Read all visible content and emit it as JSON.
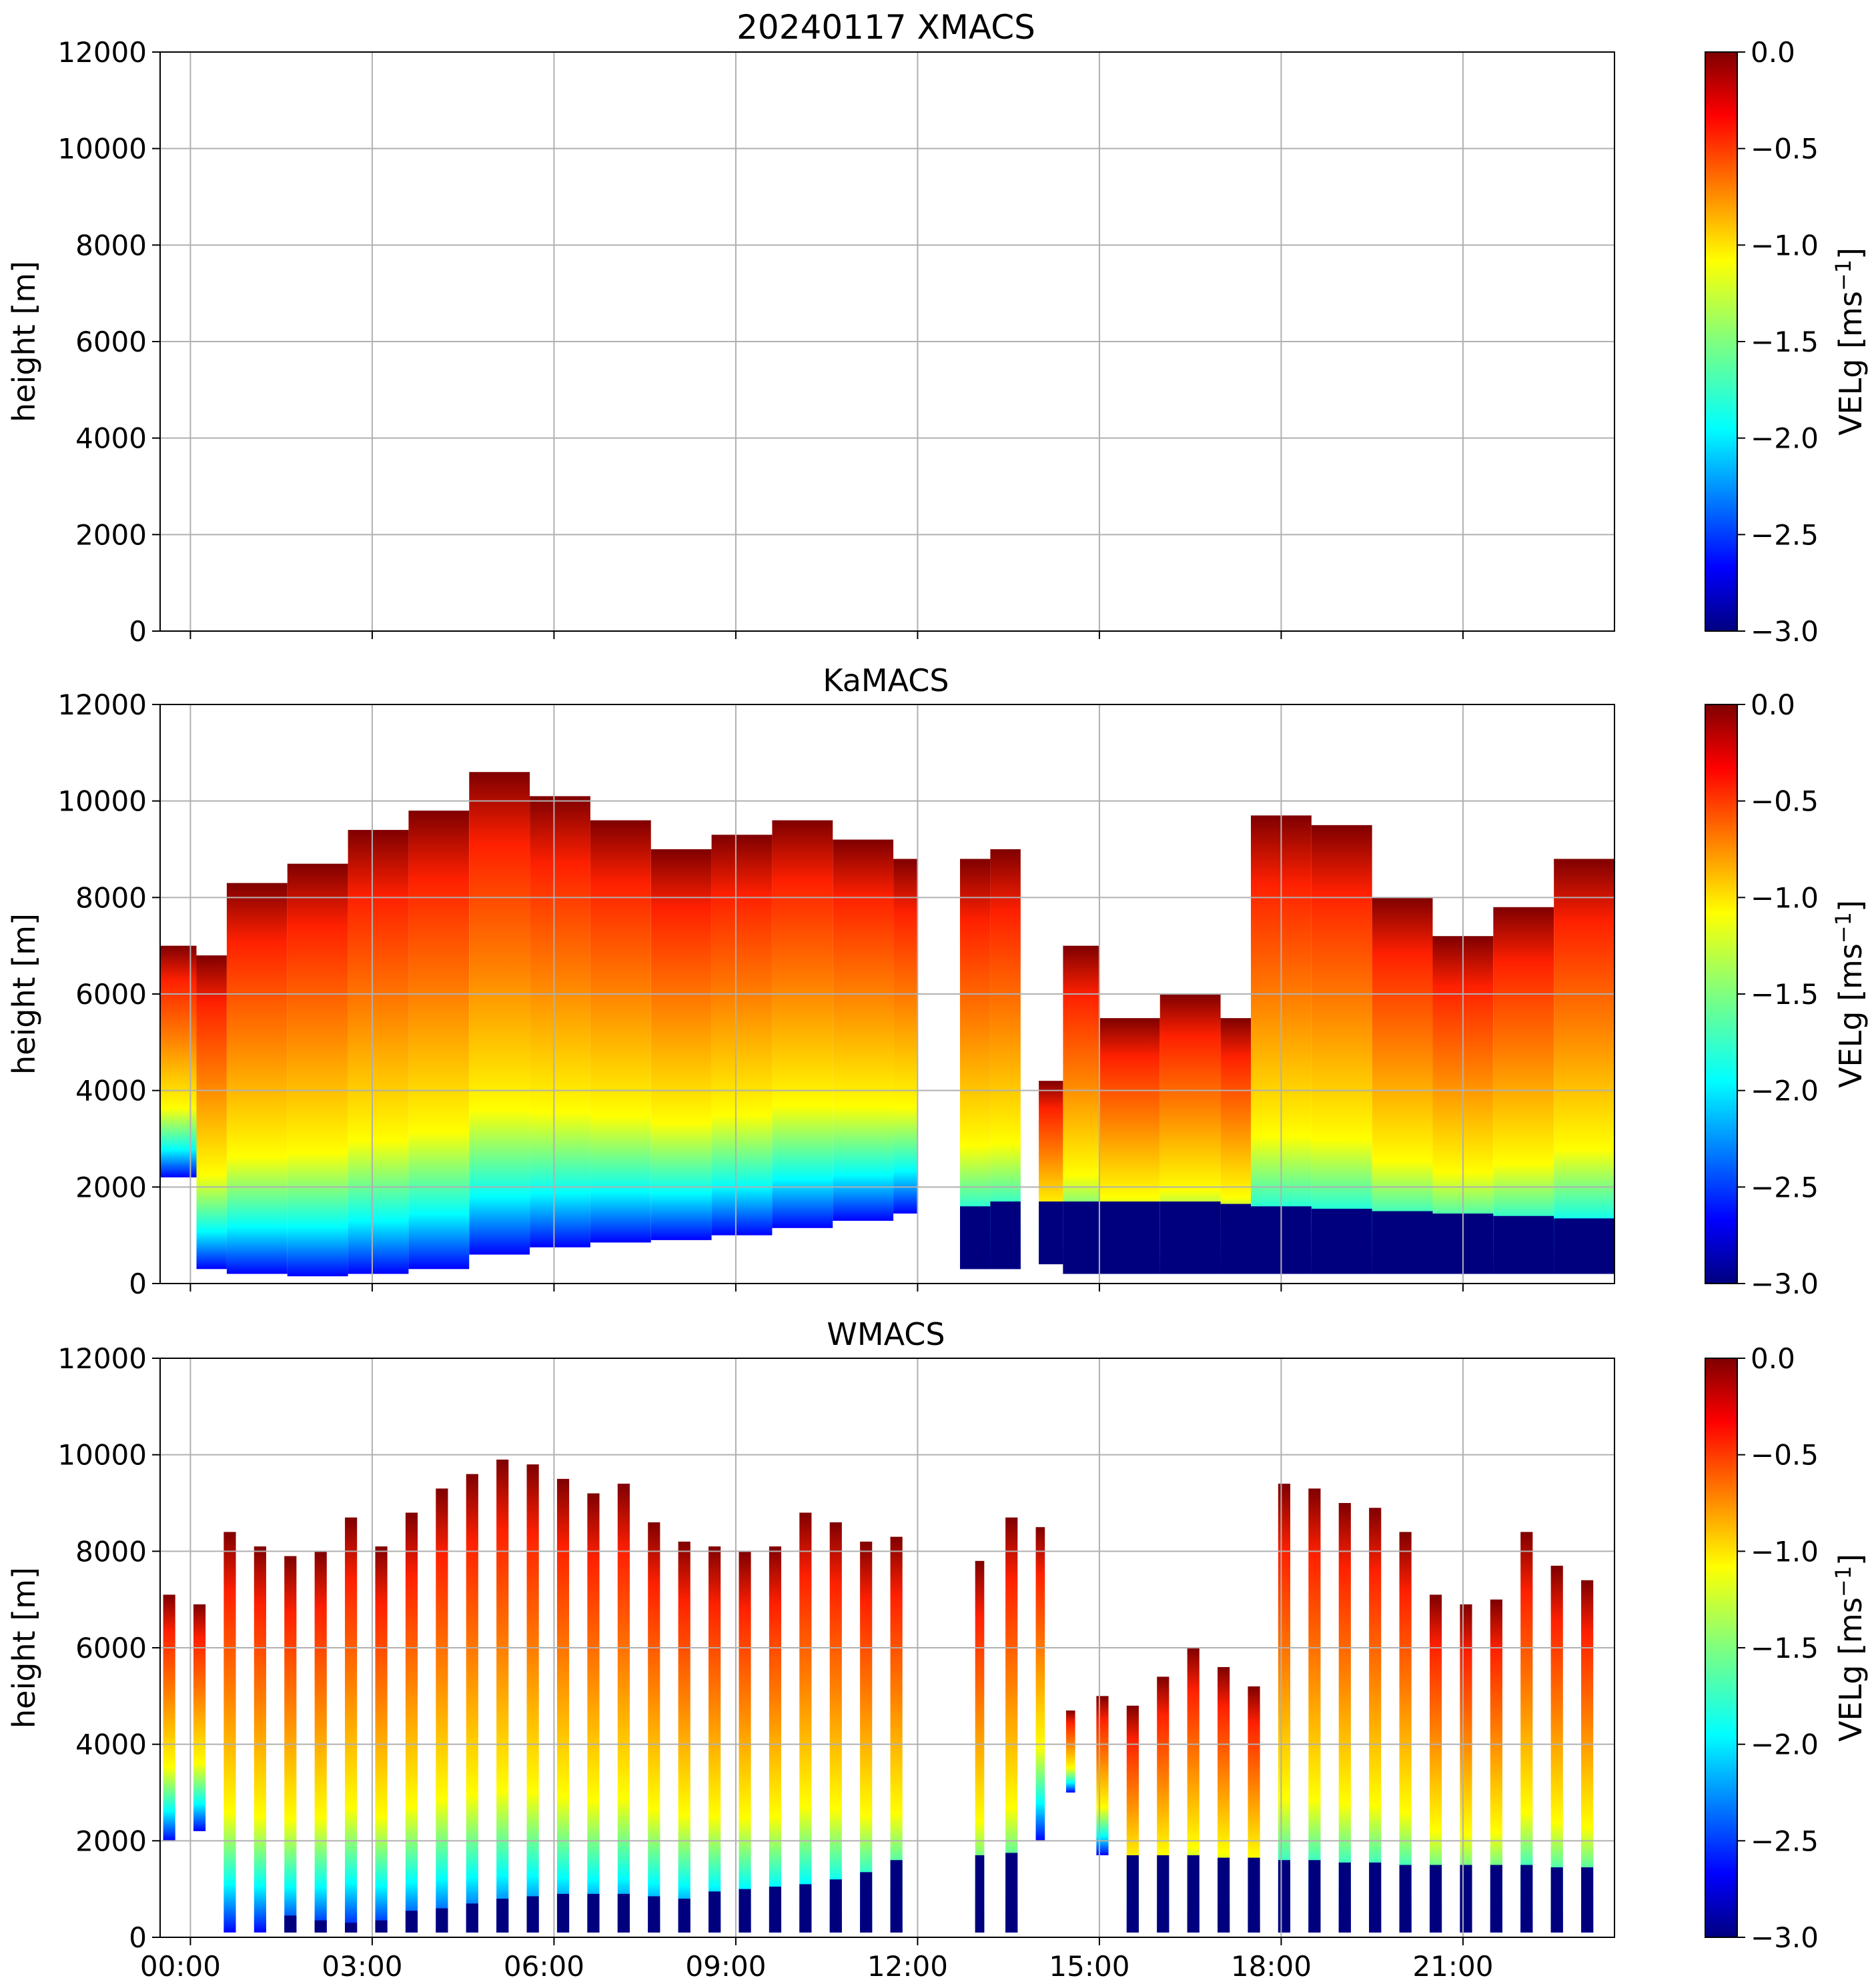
{
  "figure": {
    "colormap": [
      "#00007f",
      "#0000ff",
      "#007fff",
      "#00ffff",
      "#7fff7f",
      "#ffff00",
      "#ff7f00",
      "#ff0000",
      "#7f0000"
    ],
    "x_ticks": [
      "00:00",
      "03:00",
      "06:00",
      "09:00",
      "12:00",
      "15:00",
      "18:00",
      "21:00"
    ],
    "x_tick_hours": [
      0,
      3,
      6,
      9,
      12,
      15,
      18,
      21
    ]
  },
  "chart_data": [
    {
      "type": "heatmap",
      "title": "20240117 XMACS",
      "xlabel": "",
      "ylabel": "height [m]",
      "xlim_hours": [
        -0.5,
        23.5
      ],
      "ylim": [
        0,
        12000
      ],
      "y_ticks": [
        "0",
        "2000",
        "4000",
        "6000",
        "8000",
        "10000",
        "12000"
      ],
      "y_tick_values": [
        0,
        2000,
        4000,
        6000,
        8000,
        10000,
        12000
      ],
      "colorbar": {
        "label": "VELg [ms",
        "label_sup": "−1",
        "label_end": "]",
        "range": [
          -3.0,
          0.0
        ],
        "ticks": [
          "0.0",
          "−0.5",
          "−1.0",
          "−1.5",
          "−2.0",
          "−2.5",
          "−3.0"
        ],
        "tick_values": [
          0.0,
          -0.5,
          -1.0,
          -1.5,
          -2.0,
          -2.5,
          -3.0
        ]
      },
      "has_data": false,
      "columns": []
    },
    {
      "type": "heatmap",
      "title": "KaMACS",
      "xlabel": "",
      "ylabel": "height [m]",
      "xlim_hours": [
        -0.5,
        23.5
      ],
      "ylim": [
        0,
        12000
      ],
      "y_ticks": [
        "0",
        "2000",
        "4000",
        "6000",
        "8000",
        "10000",
        "12000"
      ],
      "y_tick_values": [
        0,
        2000,
        4000,
        6000,
        8000,
        10000,
        12000
      ],
      "colorbar": {
        "label": "VELg [ms",
        "label_sup": "−1",
        "label_end": "]",
        "range": [
          -3.0,
          0.0
        ],
        "ticks": [
          "0.0",
          "−0.5",
          "−1.0",
          "−1.5",
          "−2.0",
          "−2.5",
          "−3.0"
        ],
        "tick_values": [
          0.0,
          -0.5,
          -1.0,
          -1.5,
          -2.0,
          -2.5,
          -3.0
        ]
      },
      "has_data": true,
      "columns": [
        {
          "t0": -0.5,
          "t1": 0.1,
          "top": 7000,
          "base": 0,
          "fill_base": 2200
        },
        {
          "t0": 0.1,
          "t1": 0.6,
          "top": 6800,
          "base": 200,
          "fill_base": 300
        },
        {
          "t0": 0.6,
          "t1": 1.6,
          "top": 8300,
          "base": 100,
          "fill_base": 200
        },
        {
          "t0": 1.6,
          "t1": 2.6,
          "top": 8700,
          "base": 150,
          "fill_base": 150
        },
        {
          "t0": 2.6,
          "t1": 3.6,
          "top": 9400,
          "base": 150,
          "fill_base": 200
        },
        {
          "t0": 3.6,
          "t1": 4.6,
          "top": 9800,
          "base": 300,
          "fill_base": 300
        },
        {
          "t0": 4.6,
          "t1": 5.6,
          "top": 10600,
          "base": 600,
          "fill_base": 600
        },
        {
          "t0": 5.6,
          "t1": 6.6,
          "top": 10100,
          "base": 750,
          "fill_base": 750
        },
        {
          "t0": 6.6,
          "t1": 7.6,
          "top": 9600,
          "base": 850,
          "fill_base": 850
        },
        {
          "t0": 7.6,
          "t1": 8.6,
          "top": 9000,
          "base": 900,
          "fill_base": 900
        },
        {
          "t0": 8.6,
          "t1": 9.6,
          "top": 9300,
          "base": 1000,
          "fill_base": 1000
        },
        {
          "t0": 9.6,
          "t1": 10.6,
          "top": 9600,
          "base": 1150,
          "fill_base": 1150
        },
        {
          "t0": 10.6,
          "t1": 11.6,
          "top": 9200,
          "base": 1300,
          "fill_base": 1300
        },
        {
          "t0": 11.6,
          "t1": 12.0,
          "top": 8800,
          "base": 1450,
          "fill_base": 1450
        },
        {
          "t0": 12.7,
          "t1": 13.2,
          "top": 8800,
          "base": 1600,
          "fill_base": 300
        },
        {
          "t0": 13.2,
          "t1": 13.7,
          "top": 9000,
          "base": 1700,
          "fill_base": 300
        },
        {
          "t0": 14.0,
          "t1": 14.4,
          "top": 4200,
          "base": 1700,
          "fill_base": 400
        },
        {
          "t0": 14.4,
          "t1": 15.0,
          "top": 7000,
          "base": 1700,
          "fill_base": 200
        },
        {
          "t0": 15.0,
          "t1": 16.0,
          "top": 5500,
          "base": 1700,
          "fill_base": 200
        },
        {
          "t0": 16.0,
          "t1": 17.0,
          "top": 6000,
          "base": 1700,
          "fill_base": 200
        },
        {
          "t0": 17.0,
          "t1": 17.5,
          "top": 5500,
          "base": 1650,
          "fill_base": 200
        },
        {
          "t0": 17.5,
          "t1": 18.5,
          "top": 9700,
          "base": 1600,
          "fill_base": 200
        },
        {
          "t0": 18.5,
          "t1": 19.5,
          "top": 9500,
          "base": 1550,
          "fill_base": 200
        },
        {
          "t0": 19.5,
          "t1": 20.5,
          "top": 8000,
          "base": 1500,
          "fill_base": 200
        },
        {
          "t0": 20.5,
          "t1": 21.5,
          "top": 7200,
          "base": 1450,
          "fill_base": 200
        },
        {
          "t0": 21.5,
          "t1": 22.5,
          "top": 7800,
          "base": 1400,
          "fill_base": 200
        },
        {
          "t0": 22.5,
          "t1": 23.5,
          "top": 8800,
          "base": 1350,
          "fill_base": 200
        }
      ]
    },
    {
      "type": "heatmap",
      "title": "WMACS",
      "xlabel": "",
      "ylabel": "height [m]",
      "xlim_hours": [
        -0.5,
        23.5
      ],
      "ylim": [
        0,
        12000
      ],
      "y_ticks": [
        "0",
        "2000",
        "4000",
        "6000",
        "8000",
        "10000",
        "12000"
      ],
      "y_tick_values": [
        0,
        2000,
        4000,
        6000,
        8000,
        10000,
        12000
      ],
      "colorbar": {
        "label": "VELg [ms",
        "label_sup": "−1",
        "label_end": "]",
        "range": [
          -3.0,
          0.0
        ],
        "ticks": [
          "0.0",
          "−0.5",
          "−1.0",
          "−1.5",
          "−2.0",
          "−2.5",
          "−3.0"
        ],
        "tick_values": [
          0.0,
          -0.5,
          -1.0,
          -1.5,
          -2.0,
          -2.5,
          -3.0
        ]
      },
      "has_data": true,
      "columns": [
        {
          "t0": -0.45,
          "t1": -0.25,
          "top": 7100,
          "base": 0,
          "fill_base": 2000
        },
        {
          "t0": 0.05,
          "t1": 0.25,
          "top": 6900,
          "base": 0,
          "fill_base": 2200
        },
        {
          "t0": 0.55,
          "t1": 0.75,
          "top": 8400,
          "base": 0,
          "fill_base": 100
        },
        {
          "t0": 1.05,
          "t1": 1.25,
          "top": 8100,
          "base": 0,
          "fill_base": 100
        },
        {
          "t0": 1.55,
          "t1": 1.75,
          "top": 7900,
          "base": 450,
          "fill_base": 100
        },
        {
          "t0": 2.05,
          "t1": 2.25,
          "top": 8000,
          "base": 350,
          "fill_base": 100
        },
        {
          "t0": 2.55,
          "t1": 2.75,
          "top": 8700,
          "base": 300,
          "fill_base": 100
        },
        {
          "t0": 3.05,
          "t1": 3.25,
          "top": 8100,
          "base": 350,
          "fill_base": 100
        },
        {
          "t0": 3.55,
          "t1": 3.75,
          "top": 8800,
          "base": 550,
          "fill_base": 100
        },
        {
          "t0": 4.05,
          "t1": 4.25,
          "top": 9300,
          "base": 600,
          "fill_base": 100
        },
        {
          "t0": 4.55,
          "t1": 4.75,
          "top": 9600,
          "base": 700,
          "fill_base": 100
        },
        {
          "t0": 5.05,
          "t1": 5.25,
          "top": 9900,
          "base": 800,
          "fill_base": 100
        },
        {
          "t0": 5.55,
          "t1": 5.75,
          "top": 9800,
          "base": 850,
          "fill_base": 100
        },
        {
          "t0": 6.05,
          "t1": 6.25,
          "top": 9500,
          "base": 900,
          "fill_base": 100
        },
        {
          "t0": 6.55,
          "t1": 6.75,
          "top": 9200,
          "base": 900,
          "fill_base": 100
        },
        {
          "t0": 7.05,
          "t1": 7.25,
          "top": 9400,
          "base": 900,
          "fill_base": 100
        },
        {
          "t0": 7.55,
          "t1": 7.75,
          "top": 8600,
          "base": 850,
          "fill_base": 100
        },
        {
          "t0": 8.05,
          "t1": 8.25,
          "top": 8200,
          "base": 800,
          "fill_base": 100
        },
        {
          "t0": 8.55,
          "t1": 8.75,
          "top": 8100,
          "base": 950,
          "fill_base": 100
        },
        {
          "t0": 9.05,
          "t1": 9.25,
          "top": 8000,
          "base": 1000,
          "fill_base": 100
        },
        {
          "t0": 9.55,
          "t1": 9.75,
          "top": 8100,
          "base": 1050,
          "fill_base": 100
        },
        {
          "t0": 10.05,
          "t1": 10.25,
          "top": 8800,
          "base": 1100,
          "fill_base": 100
        },
        {
          "t0": 10.55,
          "t1": 10.75,
          "top": 8600,
          "base": 1200,
          "fill_base": 100
        },
        {
          "t0": 11.05,
          "t1": 11.25,
          "top": 8200,
          "base": 1350,
          "fill_base": 100
        },
        {
          "t0": 11.55,
          "t1": 11.75,
          "top": 8300,
          "base": 1600,
          "fill_base": 100
        },
        {
          "t0": 12.95,
          "t1": 13.1,
          "top": 7800,
          "base": 1700,
          "fill_base": 100
        },
        {
          "t0": 13.45,
          "t1": 13.65,
          "top": 8700,
          "base": 1750,
          "fill_base": 100
        },
        {
          "t0": 13.95,
          "t1": 14.1,
          "top": 8500,
          "base": 1700,
          "fill_base": 2000
        },
        {
          "t0": 14.45,
          "t1": 14.6,
          "top": 4700,
          "base": 1700,
          "fill_base": 3000
        },
        {
          "t0": 14.95,
          "t1": 15.15,
          "top": 5000,
          "base": 1700,
          "fill_base": 1700
        },
        {
          "t0": 15.45,
          "t1": 15.65,
          "top": 4800,
          "base": 1700,
          "fill_base": 100
        },
        {
          "t0": 15.95,
          "t1": 16.15,
          "top": 5400,
          "base": 1700,
          "fill_base": 100
        },
        {
          "t0": 16.45,
          "t1": 16.65,
          "top": 6000,
          "base": 1700,
          "fill_base": 100
        },
        {
          "t0": 16.95,
          "t1": 17.15,
          "top": 5600,
          "base": 1650,
          "fill_base": 100
        },
        {
          "t0": 17.45,
          "t1": 17.65,
          "top": 5200,
          "base": 1650,
          "fill_base": 100
        },
        {
          "t0": 17.95,
          "t1": 18.15,
          "top": 9400,
          "base": 1600,
          "fill_base": 100
        },
        {
          "t0": 18.45,
          "t1": 18.65,
          "top": 9300,
          "base": 1600,
          "fill_base": 100
        },
        {
          "t0": 18.95,
          "t1": 19.15,
          "top": 9000,
          "base": 1550,
          "fill_base": 100
        },
        {
          "t0": 19.45,
          "t1": 19.65,
          "top": 8900,
          "base": 1550,
          "fill_base": 100
        },
        {
          "t0": 19.95,
          "t1": 20.15,
          "top": 8400,
          "base": 1500,
          "fill_base": 100
        },
        {
          "t0": 20.45,
          "t1": 20.65,
          "top": 7100,
          "base": 1500,
          "fill_base": 100
        },
        {
          "t0": 20.95,
          "t1": 21.15,
          "top": 6900,
          "base": 1500,
          "fill_base": 100
        },
        {
          "t0": 21.45,
          "t1": 21.65,
          "top": 7000,
          "base": 1500,
          "fill_base": 100
        },
        {
          "t0": 21.95,
          "t1": 22.15,
          "top": 8400,
          "base": 1500,
          "fill_base": 100
        },
        {
          "t0": 22.45,
          "t1": 22.65,
          "top": 7700,
          "base": 1450,
          "fill_base": 100
        },
        {
          "t0": 22.95,
          "t1": 23.15,
          "top": 7400,
          "base": 1450,
          "fill_base": 100
        }
      ]
    }
  ]
}
